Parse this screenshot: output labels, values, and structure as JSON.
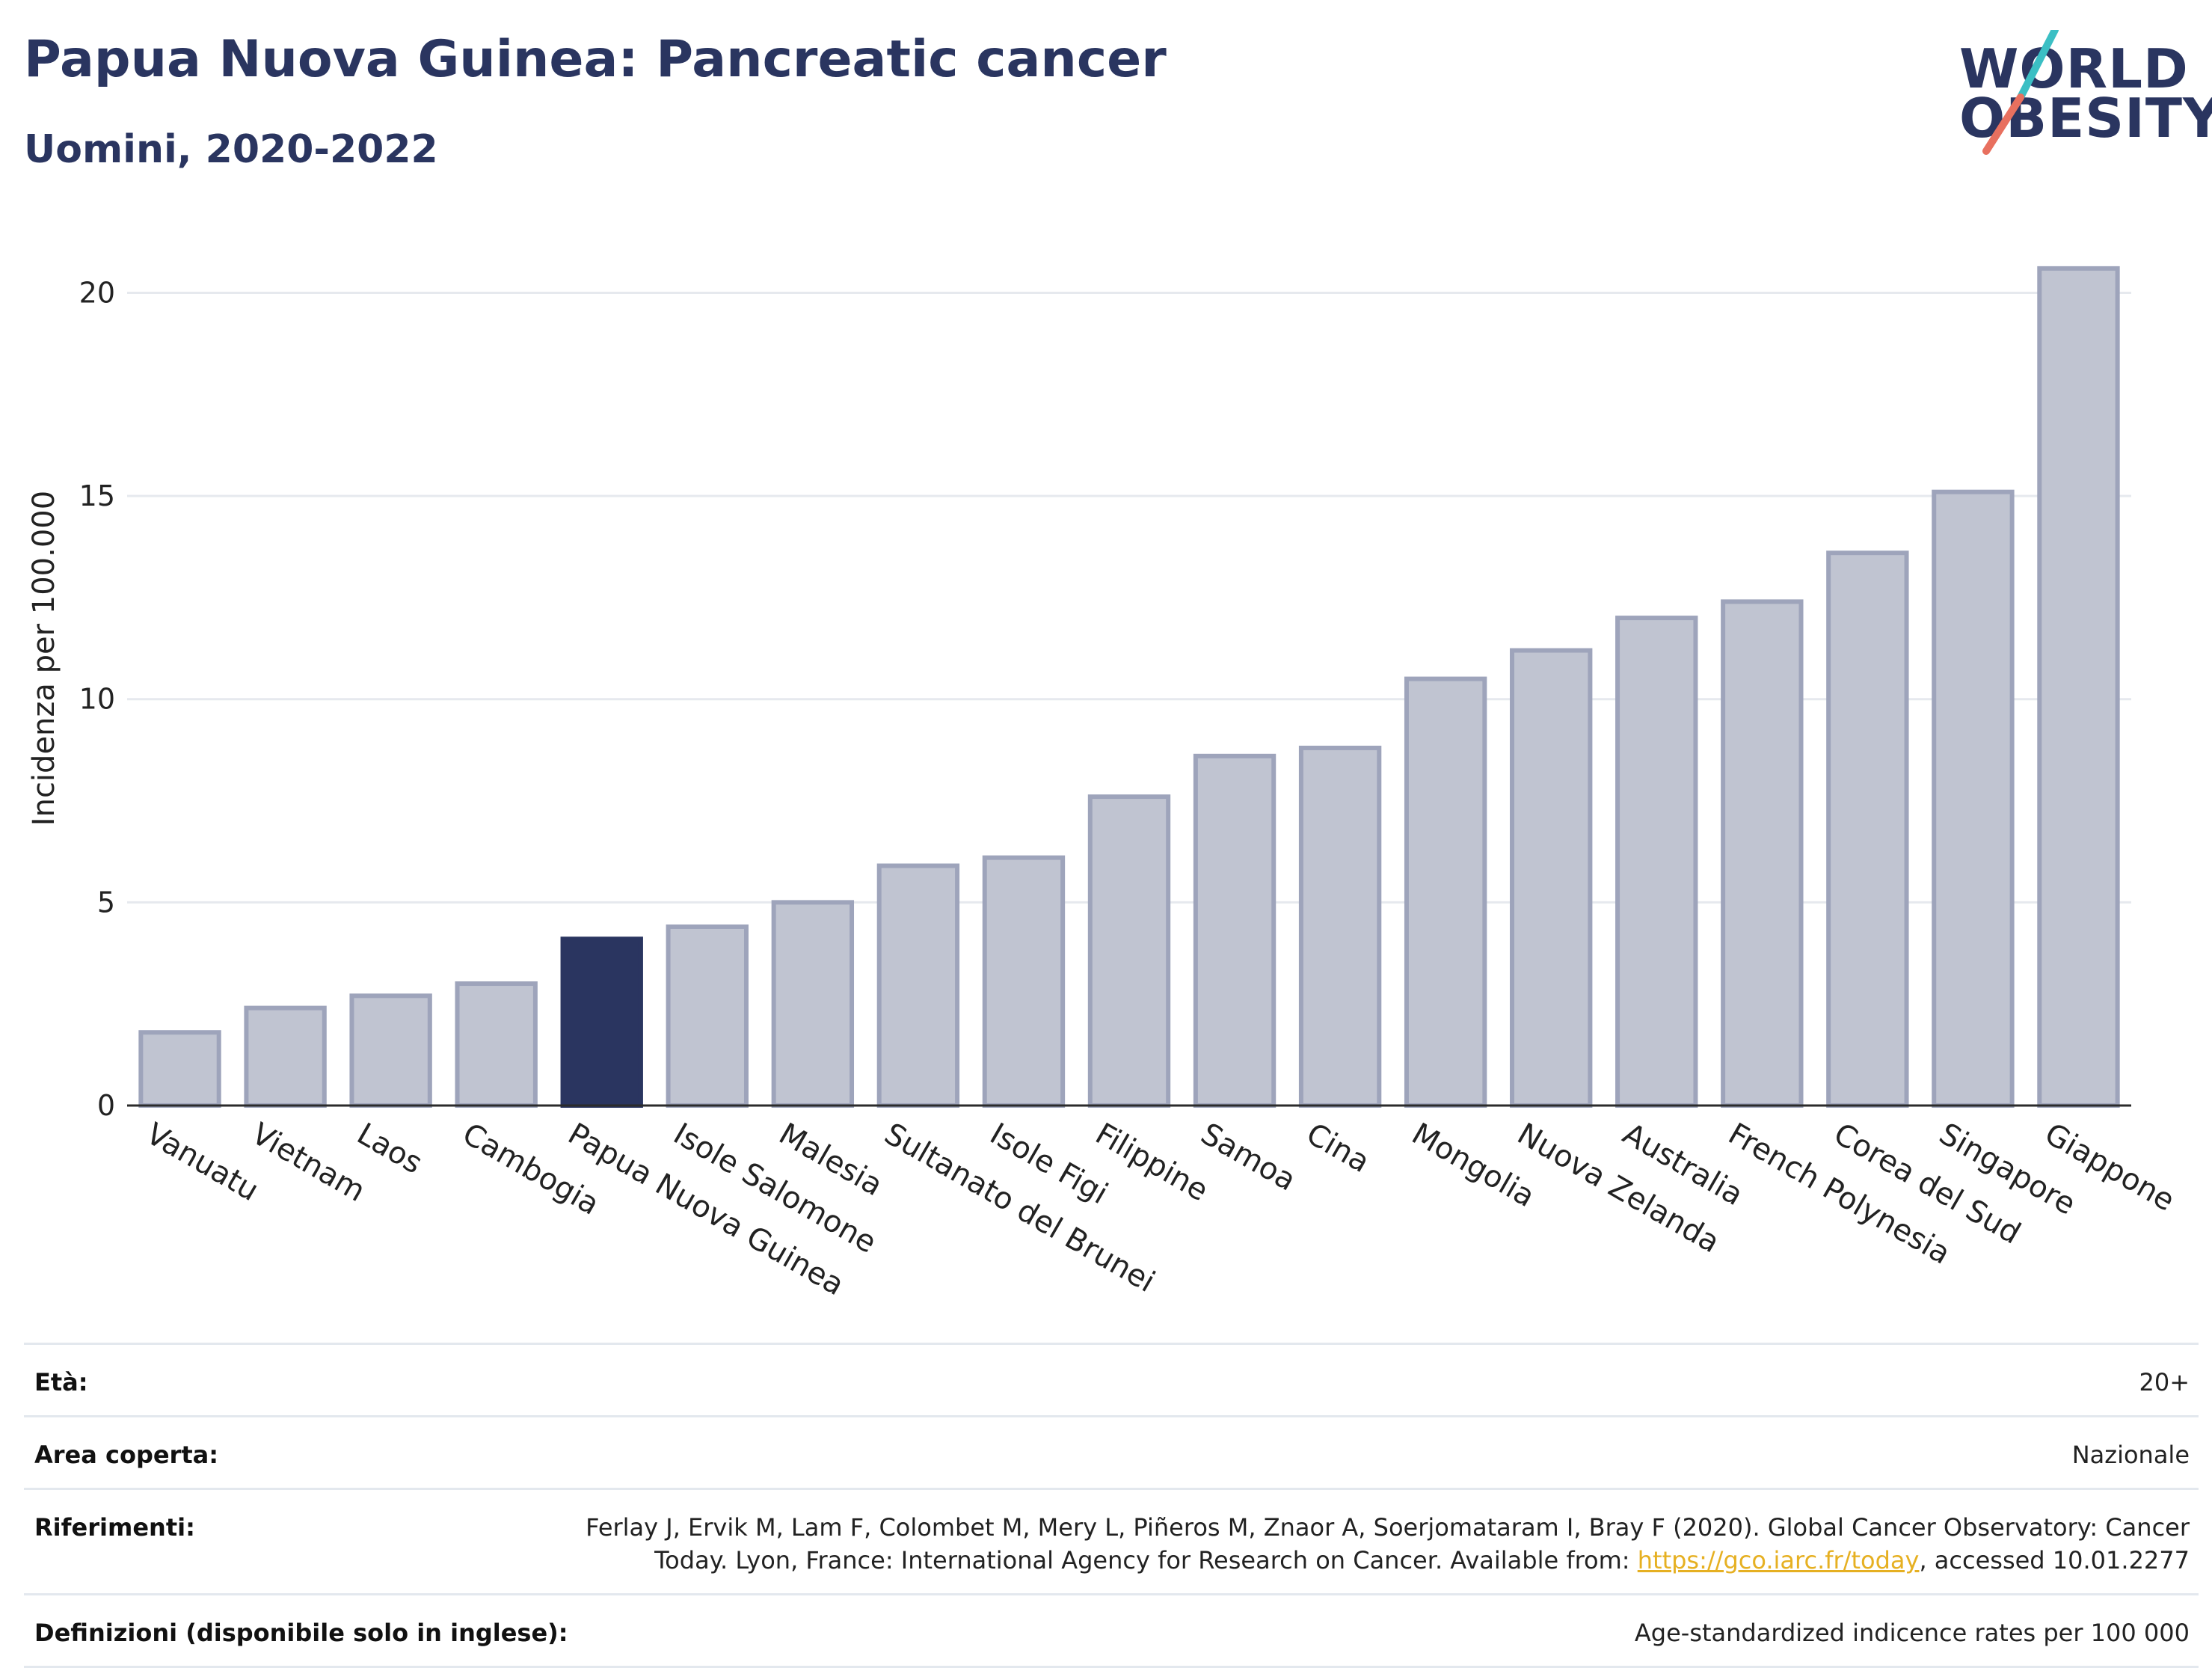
{
  "header": {
    "title": "Papua Nuova Guinea: Pancreatic cancer",
    "subtitle": "Uomini, 2020-2022"
  },
  "logo": {
    "line1": "WORLD",
    "line2": "OBESITY",
    "accent_teal": "#3bbfc4",
    "accent_coral": "#e8705f"
  },
  "chart_data": {
    "type": "bar",
    "categories": [
      "Vanuatu",
      "Vietnam",
      "Laos",
      "Cambogia",
      "Papua Nuova Guinea",
      "Isole Salomone",
      "Malesia",
      "Sultanato del Brunei",
      "Isole Figi",
      "Filippine",
      "Samoa",
      "Cina",
      "Mongolia",
      "Nuova Zelanda",
      "Australia",
      "French Polynesia",
      "Corea del Sud",
      "Singapore",
      "Giappone"
    ],
    "values": [
      1.8,
      2.4,
      2.7,
      3.0,
      4.1,
      4.4,
      5.0,
      5.9,
      6.1,
      7.6,
      8.6,
      8.8,
      10.5,
      11.2,
      12.0,
      12.4,
      13.6,
      15.1,
      20.6
    ],
    "highlight": "Papua Nuova Guinea",
    "ylabel": "Incidenza per 100.000",
    "ylim": [
      0,
      21.5
    ],
    "yticks": [
      0,
      5,
      10,
      15,
      20
    ],
    "grid": true,
    "colors": {
      "bar": "#c0c4d1",
      "bar_edge": "#9ea4bb",
      "highlight": "#2a3560",
      "grid": "#e6e9ee"
    }
  },
  "footer": {
    "rows": [
      {
        "label": "Età:",
        "value": "20+"
      },
      {
        "label": "Area coperta:",
        "value": "Nazionale"
      },
      {
        "label": "Riferimenti:",
        "value_line1": "Ferlay J, Ervik M, Lam F, Colombet M, Mery L, Piñeros M, Znaor A, Soerjomataram I, Bray F (2020). Global Cancer Observatory: Cancer",
        "value_line2_pre": "Today. Lyon, France: International Agency for Research on Cancer. Available from: ",
        "link": "https://gco.iarc.fr/today",
        "value_line2_post": ", accessed 10.01.2277"
      },
      {
        "label": "Definizioni (disponibile solo in inglese):",
        "value": "Age-standardized indicence rates per 100 000"
      }
    ]
  }
}
